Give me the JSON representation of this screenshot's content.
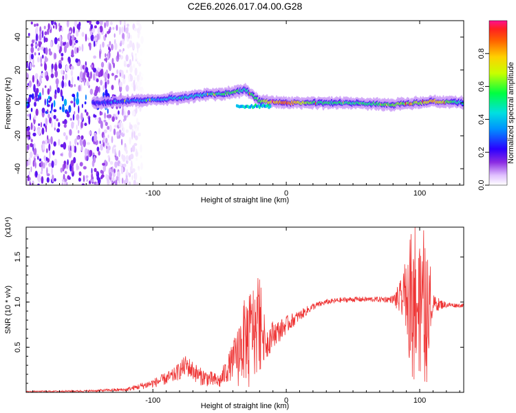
{
  "figure": {
    "title": "C2E6.2026.017.04.00.G28"
  },
  "colors": {
    "snr_line": "#ee3333",
    "axis": "#000000",
    "spec_low": "#d9c2f2",
    "spec_mid": "#6a00ff",
    "spec_high": "#ff2244"
  },
  "chart_data": [
    {
      "type": "heatmap",
      "name": "spectrogram",
      "xlabel": "Height of straight line (km)",
      "ylabel": "Frequency (Hz)",
      "xlim": [
        -195,
        133
      ],
      "ylim": [
        -50,
        50
      ],
      "xticks": [
        -100,
        0,
        100
      ],
      "xtick_labels": [
        "-100",
        "0",
        "100"
      ],
      "yticks": [
        -40,
        -20,
        0,
        20,
        40
      ],
      "ytick_labels": [
        "-40",
        "-20",
        "0",
        "20",
        "40"
      ],
      "colorbar": {
        "label": "Normalized spectral amplitude",
        "range": [
          0,
          1
        ],
        "ticks": [
          0.0,
          0.2,
          0.4,
          0.6,
          0.8
        ],
        "tick_labels": [
          "0.0",
          "0.2",
          "0.4",
          "0.6",
          "0.8"
        ]
      },
      "ridge": {
        "description_points_x_km": [
          -140,
          -120,
          -100,
          -80,
          -60,
          -45,
          -30,
          -20,
          0,
          20,
          50,
          80,
          100,
          110,
          133
        ],
        "freq_hz": [
          0,
          1,
          2,
          3,
          5,
          6,
          8,
          1,
          0,
          0,
          0,
          -1,
          0,
          1,
          0
        ],
        "amplitude": [
          0.25,
          0.3,
          0.35,
          0.4,
          0.45,
          0.55,
          0.5,
          0.6,
          0.9,
          0.55,
          0.5,
          0.6,
          0.65,
          0.8,
          0.4
        ]
      },
      "noise_region_km": [
        -195,
        -115
      ]
    },
    {
      "type": "line",
      "name": "snr",
      "xlabel": "Height of straight line (km)",
      "ylabel": "SNR (10 * v/v)",
      "exponent_label": "(x10⁴)",
      "xlim": [
        -195,
        133
      ],
      "ylim": [
        0,
        1.83
      ],
      "xticks": [
        -100,
        0,
        100
      ],
      "xtick_labels": [
        "-100",
        "0",
        "100"
      ],
      "yticks": [
        0.5,
        1.0,
        1.5
      ],
      "ytick_labels": [
        "0.5",
        "1.0",
        "1.5"
      ],
      "envelope": {
        "x": [
          -195,
          -150,
          -120,
          -100,
          -85,
          -75,
          -65,
          -50,
          -40,
          -35,
          -30,
          -25,
          -20,
          -15,
          -10,
          -5,
          0,
          10,
          20,
          30,
          40,
          50,
          60,
          70,
          80,
          90,
          95,
          100,
          105,
          110,
          120,
          133
        ],
        "y": [
          0.01,
          0.015,
          0.03,
          0.1,
          0.18,
          0.3,
          0.18,
          0.12,
          0.35,
          0.5,
          0.6,
          0.75,
          0.75,
          0.55,
          0.65,
          0.68,
          0.75,
          0.85,
          0.95,
          1.0,
          1.02,
          1.03,
          1.03,
          1.03,
          1.03,
          1.03,
          1.0,
          1.0,
          0.95,
          0.98,
          0.97,
          0.96
        ],
        "noise_amp": [
          0.005,
          0.01,
          0.02,
          0.05,
          0.08,
          0.12,
          0.1,
          0.08,
          0.2,
          0.35,
          0.5,
          0.45,
          0.4,
          0.2,
          0.15,
          0.12,
          0.1,
          0.06,
          0.04,
          0.03,
          0.03,
          0.03,
          0.03,
          0.03,
          0.04,
          0.35,
          0.7,
          0.6,
          0.7,
          0.1,
          0.03,
          0.02
        ]
      }
    }
  ]
}
